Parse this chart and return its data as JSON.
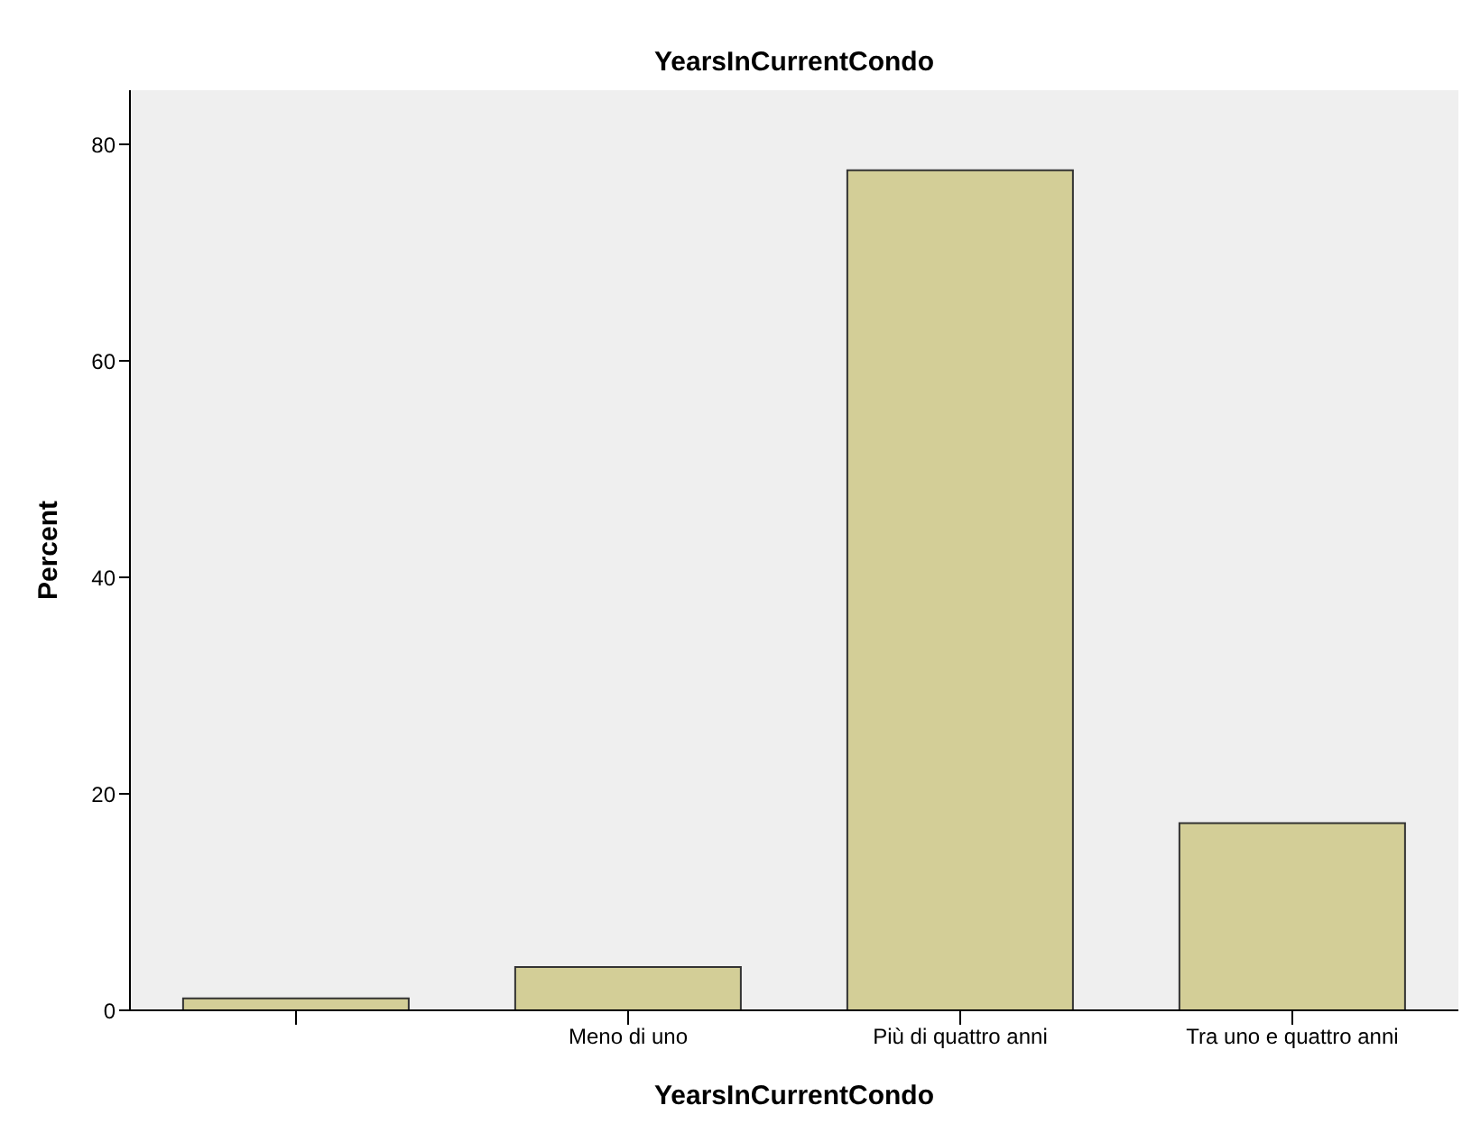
{
  "chart_data": {
    "type": "bar",
    "title": "YearsInCurrentCondo",
    "xlabel": "YearsInCurrentCondo",
    "ylabel": "Percent",
    "categories": [
      null,
      "Meno di uno",
      "Più di quattro anni",
      "Tra uno e quattro anni"
    ],
    "values": [
      1.1,
      4.0,
      77.6,
      17.3
    ],
    "color": "#d3ce97",
    "ylim": [
      0,
      85
    ],
    "yticks": [
      0,
      20,
      40,
      60,
      80
    ]
  }
}
